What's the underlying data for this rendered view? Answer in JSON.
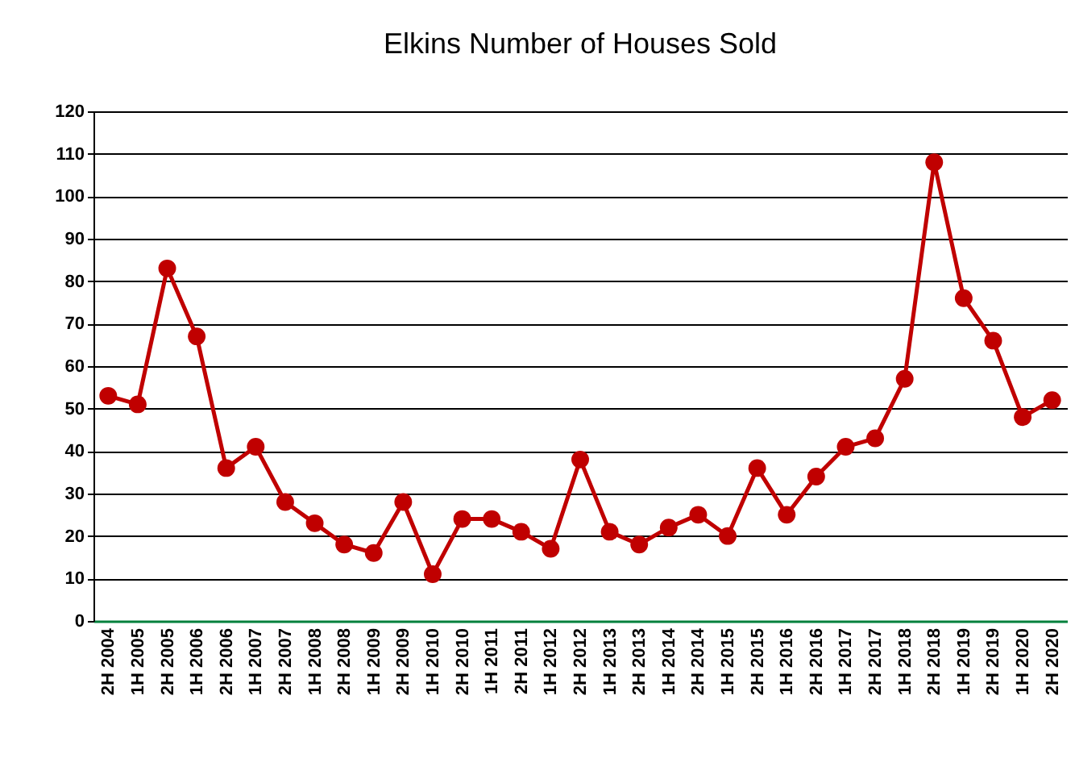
{
  "chart_data": {
    "type": "line",
    "title": "Elkins Number of Houses Sold",
    "categories": [
      "2H 2004",
      "1H 2005",
      "2H 2005",
      "1H 2006",
      "2H 2006",
      "1H 2007",
      "2H 2007",
      "1H 2008",
      "2H 2008",
      "1H 2009",
      "2H 2009",
      "1H 2010",
      "2H 2010",
      "1H 2011",
      "2H 2011",
      "1H 2012",
      "2H 2012",
      "1H 2013",
      "2H 2013",
      "1H 2014",
      "2H 2014",
      "1H 2015",
      "2H 2015",
      "1H 2016",
      "2H 2016",
      "1H 2017",
      "2H 2017",
      "1H 2018",
      "2H 2018",
      "1H 2019",
      "2H 2019",
      "1H 2020",
      "2H 2020"
    ],
    "series": [
      {
        "color": "#c00000",
        "values": [
          53,
          51,
          83,
          67,
          36,
          41,
          28,
          23,
          18,
          16,
          28,
          11,
          24,
          24,
          21,
          17,
          38,
          21,
          18,
          22,
          25,
          20,
          36,
          25,
          34,
          41,
          43,
          57,
          108,
          76,
          66,
          48,
          52
        ]
      }
    ],
    "ylim": [
      0,
      120
    ],
    "yticks": [
      0,
      10,
      20,
      30,
      40,
      50,
      60,
      70,
      80,
      90,
      100,
      110,
      120
    ],
    "grid": "y",
    "marker": "circle",
    "line_style": "solid"
  }
}
